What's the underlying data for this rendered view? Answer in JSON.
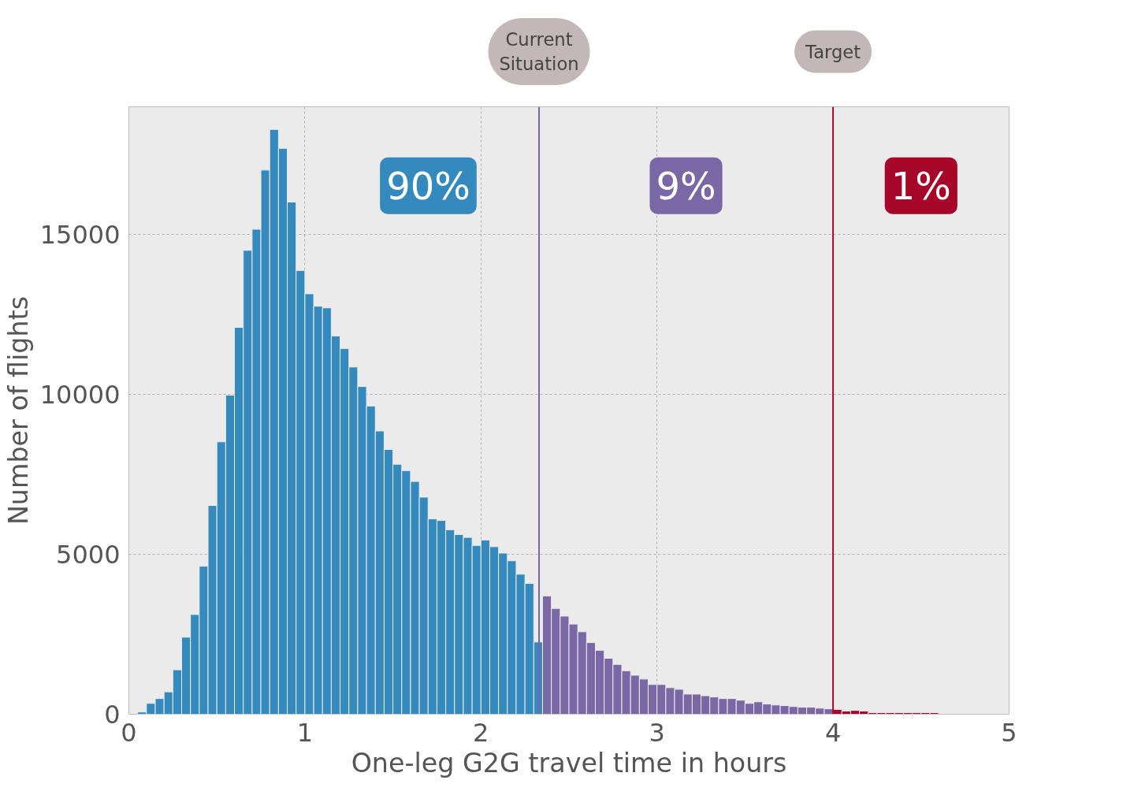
{
  "chart_data": {
    "type": "histogram",
    "xlabel": "One-leg G2G travel time in hours",
    "ylabel": "Number of flights",
    "bins": [
      0.05,
      0.1,
      0.15,
      0.2,
      0.25,
      0.3,
      0.35,
      0.4,
      0.45,
      0.5,
      0.55,
      0.6,
      0.65,
      0.7,
      0.75,
      0.8,
      0.85,
      0.9,
      0.95,
      1.0,
      1.05,
      1.1,
      1.15,
      1.2,
      1.25,
      1.3,
      1.35,
      1.4,
      1.45,
      1.5,
      1.55,
      1.6,
      1.65,
      1.7,
      1.75,
      1.8,
      1.85,
      1.9,
      1.95,
      2.0,
      2.05,
      2.1,
      2.15,
      2.2,
      2.25,
      2.3,
      2.35,
      2.4,
      2.45,
      2.5,
      2.55,
      2.6,
      2.65,
      2.7,
      2.75,
      2.8,
      2.85,
      2.9,
      2.95,
      3.0,
      3.05,
      3.1,
      3.15,
      3.2,
      3.25,
      3.3,
      3.35,
      3.4,
      3.45,
      3.5,
      3.55,
      3.6,
      3.65,
      3.7,
      3.75,
      3.8,
      3.85,
      3.9,
      3.95,
      4.0,
      4.05,
      4.1,
      4.15,
      4.2,
      4.25,
      4.3,
      4.35,
      4.4,
      4.45,
      4.5,
      4.55,
      4.6,
      4.65,
      4.7,
      4.75,
      4.8,
      4.85
    ],
    "values": [
      70,
      340,
      490,
      700,
      1390,
      2410,
      3120,
      4630,
      6530,
      8520,
      9980,
      12100,
      14510,
      15170,
      17020,
      18290,
      17700,
      16020,
      13880,
      13150,
      12760,
      12710,
      11830,
      11440,
      10860,
      10250,
      9640,
      8860,
      8280,
      7820,
      7620,
      7280,
      6790,
      6110,
      6060,
      5770,
      5620,
      5530,
      5280,
      5450,
      5240,
      5040,
      4800,
      4380,
      4090,
      2260,
      3700,
      3310,
      3070,
      2820,
      2580,
      2240,
      2000,
      1750,
      1560,
      1360,
      1220,
      1100,
      930,
      930,
      830,
      780,
      630,
      630,
      580,
      540,
      490,
      490,
      440,
      340,
      390,
      320,
      290,
      270,
      240,
      220,
      220,
      190,
      170,
      150,
      100,
      120,
      100,
      50,
      50,
      50,
      50,
      50,
      50,
      50,
      50,
      null,
      null,
      null,
      null,
      null
    ],
    "colors": [
      "#348abd",
      "#348abd",
      "#348abd",
      "#348abd",
      "#348abd",
      "#348abd",
      "#348abd",
      "#348abd",
      "#348abd",
      "#348abd",
      "#348abd",
      "#348abd",
      "#348abd",
      "#348abd",
      "#348abd",
      "#348abd",
      "#348abd",
      "#348abd",
      "#348abd",
      "#348abd",
      "#348abd",
      "#348abd",
      "#348abd",
      "#348abd",
      "#348abd",
      "#348abd",
      "#348abd",
      "#348abd",
      "#348abd",
      "#348abd",
      "#348abd",
      "#348abd",
      "#348abd",
      "#348abd",
      "#348abd",
      "#348abd",
      "#348abd",
      "#348abd",
      "#348abd",
      "#348abd",
      "#348abd",
      "#348abd",
      "#348abd",
      "#348abd",
      "#348abd",
      "#348abd",
      "#7a68a6",
      "#7a68a6",
      "#7a68a6",
      "#7a68a6",
      "#7a68a6",
      "#7a68a6",
      "#7a68a6",
      "#7a68a6",
      "#7a68a6",
      "#7a68a6",
      "#7a68a6",
      "#7a68a6",
      "#7a68a6",
      "#7a68a6",
      "#7a68a6",
      "#7a68a6",
      "#7a68a6",
      "#7a68a6",
      "#7a68a6",
      "#7a68a6",
      "#7a68a6",
      "#7a68a6",
      "#7a68a6",
      "#7a68a6",
      "#7a68a6",
      "#7a68a6",
      "#7a68a6",
      "#7a68a6",
      "#7a68a6",
      "#7a68a6",
      "#7a68a6",
      "#7a68a6",
      "#7a68a6",
      "#a60628",
      "#a60628",
      "#a60628",
      "#a60628",
      "#a60628",
      "#a60628",
      "#a60628",
      "#a60628",
      "#a60628",
      "#a60628",
      "#a60628",
      "#a60628",
      "#a60628",
      "#a60628",
      "#a60628",
      "#a60628",
      "#a60628"
    ],
    "xlim": [
      0,
      5
    ],
    "xticks": [
      0,
      1,
      2,
      3,
      4,
      5
    ],
    "ylim": [
      0,
      19000
    ],
    "yticks": [
      0,
      5000,
      10000,
      15000
    ],
    "grid": true,
    "ref_lines": [
      {
        "axis": "x",
        "value": 2.33,
        "label": "Current\nSituation",
        "color": "#7a68a6"
      },
      {
        "axis": "x",
        "value": 4,
        "label": "Target",
        "color": "#a60628"
      }
    ],
    "annotations": [
      "90%",
      "9%",
      "1%"
    ]
  }
}
